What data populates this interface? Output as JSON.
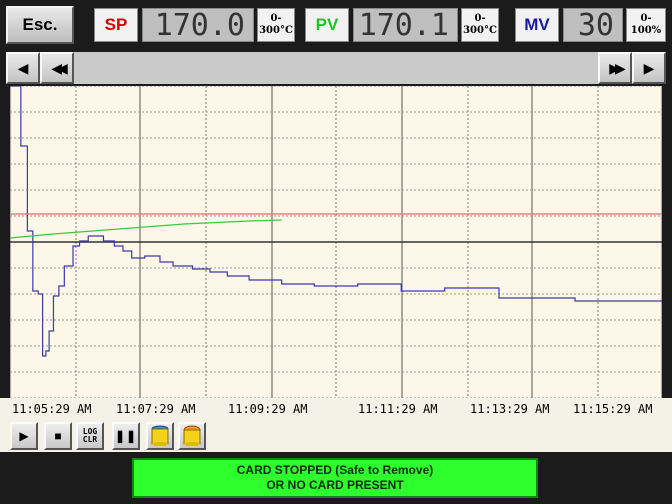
{
  "header": {
    "esc_label": "Esc.",
    "sp": {
      "label": "SP",
      "value": "170.0",
      "range_top": "0-",
      "range_bottom": "300°C",
      "color": "#d40000"
    },
    "pv": {
      "label": "PV",
      "value": "170.1",
      "range_top": "0-",
      "range_bottom": "300°C",
      "color": "#22c322"
    },
    "mv": {
      "label": "MV",
      "value": "30",
      "range_top": "0-",
      "range_bottom": "100%",
      "color": "#1a1aa0"
    }
  },
  "nav": {
    "scroll_left_icon": "triangle-left",
    "fast_left_icon": "double-triangle-left",
    "fast_right_icon": "double-triangle-right",
    "scroll_right_icon": "triangle-right"
  },
  "time_axis": {
    "ticks": [
      "11:05:29 AM",
      "11:07:29 AM",
      "11:09:29 AM",
      "11:11:29 AM",
      "11:13:29 AM",
      "11:15:29 AM"
    ]
  },
  "toolbar": {
    "play_icon": "play",
    "stop_icon": "stop",
    "log_clear_top": "LOG",
    "log_clear_bottom": "CLR",
    "pause_icon": "pause",
    "card_icon_blue": "card-blue",
    "card_icon_orange": "card-orange"
  },
  "status": {
    "line1": "CARD STOPPED (Safe to Remove)",
    "line2": "OR NO CARD PRESENT"
  },
  "chart_data": {
    "type": "line",
    "x_unit": "seconds from 11:05:29 AM",
    "xlim": [
      0,
      600
    ],
    "grid": true,
    "series": [
      {
        "color": "#3b3ba8",
        "points": [
          [
            0,
            0
          ],
          [
            10,
            0
          ],
          [
            10,
            60
          ],
          [
            16,
            60
          ],
          [
            16,
            145
          ],
          [
            21,
            145
          ],
          [
            21,
            205
          ],
          [
            26,
            205
          ],
          [
            26,
            208
          ],
          [
            30,
            208
          ],
          [
            30,
            270
          ],
          [
            33,
            270
          ],
          [
            33,
            265
          ],
          [
            36,
            265
          ],
          [
            36,
            245
          ],
          [
            40,
            245
          ],
          [
            40,
            210
          ],
          [
            45,
            210
          ],
          [
            45,
            200
          ],
          [
            50,
            200
          ],
          [
            50,
            180
          ],
          [
            58,
            180
          ],
          [
            58,
            160
          ],
          [
            64,
            160
          ],
          [
            64,
            155
          ],
          [
            72,
            155
          ],
          [
            72,
            150
          ],
          [
            86,
            150
          ],
          [
            86,
            155
          ],
          [
            96,
            155
          ],
          [
            96,
            160
          ],
          [
            104,
            160
          ],
          [
            104,
            165
          ],
          [
            112,
            165
          ],
          [
            112,
            172
          ],
          [
            124,
            172
          ],
          [
            124,
            170
          ],
          [
            138,
            170
          ],
          [
            138,
            176
          ],
          [
            150,
            176
          ],
          [
            150,
            180
          ],
          [
            168,
            180
          ],
          [
            168,
            183
          ],
          [
            184,
            183
          ],
          [
            184,
            186
          ],
          [
            200,
            186
          ],
          [
            200,
            190
          ],
          [
            220,
            190
          ],
          [
            220,
            194
          ],
          [
            250,
            194
          ],
          [
            250,
            198
          ],
          [
            280,
            198
          ],
          [
            280,
            200
          ],
          [
            320,
            200
          ],
          [
            320,
            198
          ],
          [
            360,
            198
          ],
          [
            360,
            205
          ],
          [
            400,
            205
          ],
          [
            400,
            202
          ],
          [
            450,
            202
          ],
          [
            450,
            212
          ],
          [
            520,
            212
          ],
          [
            520,
            215
          ],
          [
            600,
            215
          ]
        ]
      },
      {
        "color": "#3cc83c",
        "points": [
          [
            0,
            152
          ],
          [
            40,
            148
          ],
          [
            100,
            143
          ],
          [
            160,
            138
          ],
          [
            220,
            135
          ],
          [
            250,
            134
          ]
        ]
      },
      {
        "color": "#e07070",
        "points": [
          [
            0,
            128
          ],
          [
            600,
            128
          ]
        ]
      }
    ]
  }
}
